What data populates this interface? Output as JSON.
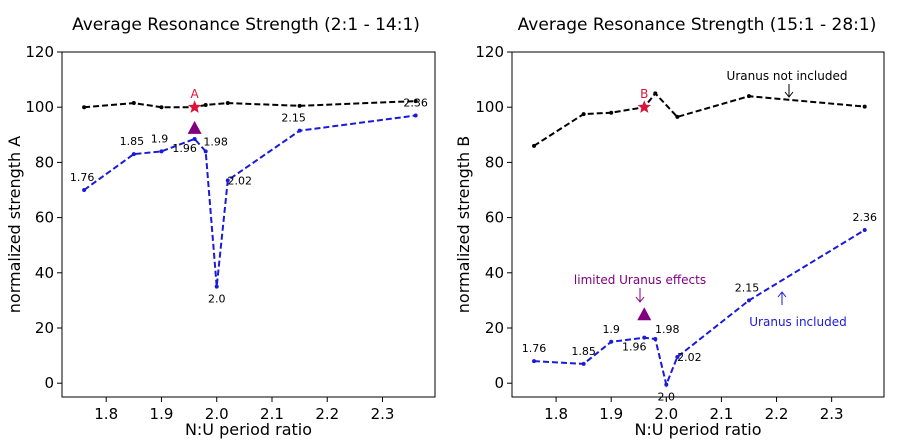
{
  "chart_data": [
    {
      "type": "line",
      "title": "Average Resonance Strength (2:1 - 14:1)",
      "xlabel": "N:U period ratio",
      "ylabel": "normalized strength A",
      "xlim": [
        1.72,
        2.395
      ],
      "ylim": [
        -5,
        120
      ],
      "xticks": [
        1.8,
        1.9,
        2.0,
        2.1,
        2.2,
        2.3
      ],
      "xtick_labels": [
        "1.8",
        "1.9",
        "2.0",
        "2.1",
        "2.2",
        "2.3"
      ],
      "yticks": [
        0,
        20,
        40,
        60,
        80,
        100,
        120
      ],
      "ytick_labels": [
        "0",
        "20",
        "40",
        "60",
        "80",
        "100",
        "120"
      ],
      "grid": false,
      "series": [
        {
          "color": "#000000",
          "x": [
            1.76,
            1.85,
            1.9,
            1.96,
            1.98,
            2.02,
            2.15,
            2.36
          ],
          "y": [
            100,
            101.5,
            100,
            100,
            100.8,
            101.5,
            100.5,
            102.2
          ]
        },
        {
          "color": "#1a1adb",
          "x": [
            1.76,
            1.85,
            1.9,
            1.96,
            1.98,
            2.0,
            2.02,
            2.15,
            2.36
          ],
          "y": [
            70,
            83,
            84,
            88.5,
            84,
            35,
            73.5,
            91.5,
            97
          ],
          "point_labels": [
            "1.76",
            "1.85",
            "1.9",
            "1.96",
            "1.98",
            "2.0",
            "2.02",
            "2.15",
            "2.36"
          ]
        }
      ],
      "markers": [
        {
          "shape": "star",
          "x": 1.96,
          "y": 100,
          "color": "#dc143c",
          "label": "A"
        },
        {
          "shape": "triangle",
          "x": 1.96,
          "y": 92.5,
          "color": "#800080"
        }
      ],
      "annotations": []
    },
    {
      "type": "line",
      "title": "Average Resonance Strength (15:1 - 28:1)",
      "xlabel": "N:U period ratio",
      "ylabel": "normalized strength B",
      "xlim": [
        1.72,
        2.395
      ],
      "ylim": [
        -5,
        120
      ],
      "xticks": [
        1.8,
        1.9,
        2.0,
        2.1,
        2.2,
        2.3
      ],
      "xtick_labels": [
        "1.8",
        "1.9",
        "2.0",
        "2.1",
        "2.2",
        "2.3"
      ],
      "yticks": [
        0,
        20,
        40,
        60,
        80,
        100,
        120
      ],
      "ytick_labels": [
        "0",
        "20",
        "40",
        "60",
        "80",
        "100",
        "120"
      ],
      "grid": false,
      "series": [
        {
          "color": "#000000",
          "x": [
            1.76,
            1.85,
            1.9,
            1.96,
            1.98,
            2.02,
            2.15,
            2.36
          ],
          "y": [
            86,
            97.5,
            98,
            100,
            105,
            96.5,
            104,
            100.2
          ]
        },
        {
          "color": "#1a1adb",
          "x": [
            1.76,
            1.85,
            1.9,
            1.96,
            1.98,
            2.0,
            2.02,
            2.15,
            2.36
          ],
          "y": [
            8,
            7,
            15,
            16.5,
            16,
            -0.5,
            9.5,
            30,
            55.5
          ],
          "point_labels": [
            "1.76",
            "1.85",
            "1.9",
            "1.96",
            "1.98",
            "2.0",
            "2.02",
            "2.15",
            "2.36"
          ]
        }
      ],
      "markers": [
        {
          "shape": "star",
          "x": 1.96,
          "y": 100,
          "color": "#dc143c",
          "label": "B"
        },
        {
          "shape": "triangle",
          "x": 1.96,
          "y": 25,
          "color": "#800080"
        }
      ],
      "annotations": [
        {
          "text": "Uranus not included",
          "color": "#000000"
        },
        {
          "text": "limited Uranus effects",
          "color": "#800080"
        },
        {
          "text": "Uranus included",
          "color": "#1a1adb"
        }
      ]
    }
  ]
}
